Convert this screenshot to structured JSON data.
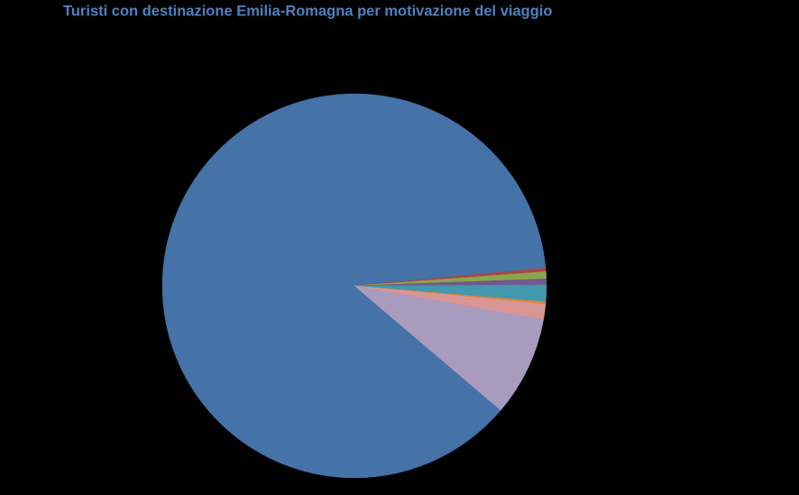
{
  "chart_data": {
    "type": "pie",
    "title": "Turisti con destinazione Emilia-Romagna per motivazione del viaggio",
    "values": [
      87.3,
      0.3,
      0.6,
      0.5,
      1.4,
      0.2,
      1.3,
      8.4
    ],
    "colors": [
      "#4572a7",
      "#aa4643",
      "#89a54e",
      "#71588f",
      "#4198af",
      "#db843d",
      "#d99694",
      "#a99bbd"
    ]
  }
}
